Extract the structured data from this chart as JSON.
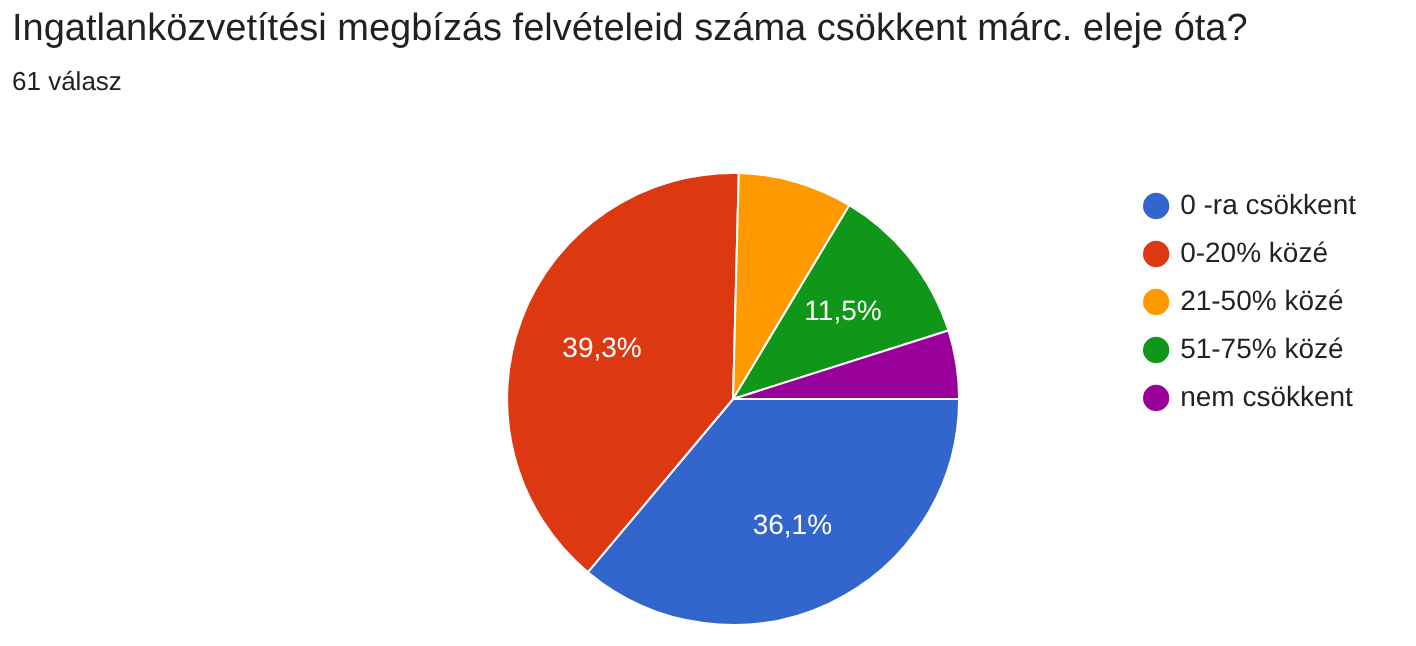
{
  "chart_data": {
    "type": "pie",
    "title": "Ingatlanközvetítési megbízás felvételeid száma csökkent márc. eleje óta?",
    "subtitle": "61 válasz",
    "categories": [
      "0 -ra csökkent",
      "0-20% közé",
      "21-50% közé",
      "51-75% közé",
      "nem csökkent"
    ],
    "values": [
      36.1,
      39.3,
      8.2,
      11.5,
      4.9
    ],
    "colors": [
      "#3366cc",
      "#dc3912",
      "#ff9900",
      "#109618",
      "#990099"
    ],
    "value_labels": [
      "36,1%",
      "39,3%",
      null,
      "11,5%",
      null
    ],
    "legend": "right"
  }
}
